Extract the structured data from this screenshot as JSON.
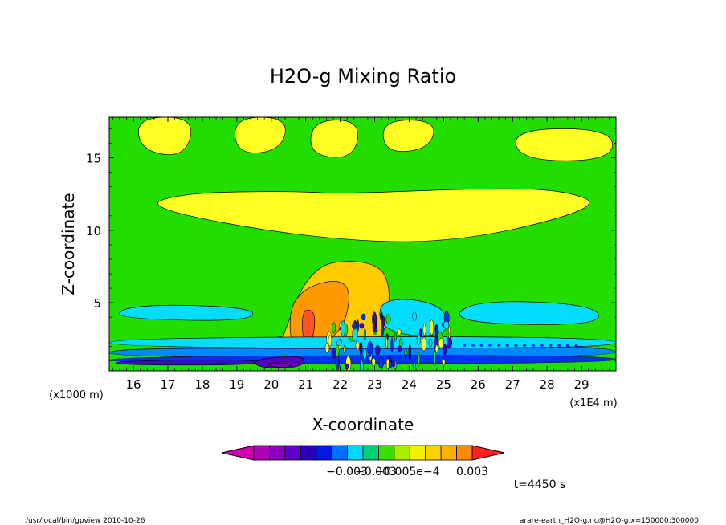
{
  "chart_data": {
    "type": "heatmap",
    "title": "H2O-g Mixing Ratio",
    "xlabel": "X-coordinate",
    "ylabel": "Z-coordinate",
    "x_unit_label": "(x1E4 m)",
    "y_unit_label": "(x1000 m)",
    "xlim": [
      15.3,
      30.0
    ],
    "ylim": [
      0.3,
      17.8
    ],
    "x_ticks": [
      "16",
      "17",
      "18",
      "19",
      "20",
      "21",
      "22",
      "23",
      "24",
      "25",
      "26",
      "27",
      "28",
      "29"
    ],
    "y_ticks": [
      "5",
      "10",
      "15"
    ],
    "colorbar": {
      "colors": [
        "#d000b0",
        "#b000b8",
        "#8a00c0",
        "#6000c8",
        "#2a00b8",
        "#0018e0",
        "#0070ff",
        "#00d8ff",
        "#00d078",
        "#36e000",
        "#a8f000",
        "#f0f000",
        "#ffd000",
        "#ffb000",
        "#ff8c00",
        "#ff2020"
      ],
      "tick_labels": [
        "−0.003",
        "−0.003",
        "−0.005e−4",
        "0.003"
      ]
    },
    "footer_time": "t=4450 s",
    "footer_left": "/usr/local/bin/gpview  2010-10-26",
    "footer_right": "arare-earth_H2O-g.nc@H2O-g,x=150000:300000",
    "colors": {
      "background_level": "#22dd00",
      "pale": "#ffff22",
      "moderate": "#ffcc00",
      "high": "#ff9900",
      "max": "#ff5522",
      "cyan": "#00ddff",
      "mid_blue": "#0088ff",
      "blue": "#0033ee",
      "indigo": "#3311bb",
      "violet": "#5500bb",
      "purple": "#7700bb"
    },
    "regions": [
      {
        "level": "pale",
        "x": [
          20.9,
          25.2,
          29.7,
          28.5,
          26.0,
          22.0,
          20.7,
          17.5,
          16.2
        ],
        "z": [
          9.5,
          9.0,
          11.6,
          12.8,
          12.9,
          12.5,
          12.7,
          12.6,
          11.6
        ]
      },
      {
        "level": "pale",
        "x": [
          16.1,
          17.8,
          17.5,
          16.2
        ],
        "z": [
          17.8,
          17.8,
          15.0,
          15.5
        ]
      },
      {
        "level": "pale",
        "x": [
          18.9,
          20.5,
          20.3,
          19.0
        ],
        "z": [
          17.8,
          17.8,
          15.5,
          15.2
        ]
      },
      {
        "level": "pale",
        "x": [
          21.2,
          22.6,
          22.4,
          21.1
        ],
        "z": [
          17.6,
          17.6,
          14.9,
          15.2
        ]
      },
      {
        "level": "pale",
        "x": [
          23.2,
          24.8,
          24.6,
          23.3
        ],
        "z": [
          17.6,
          17.6,
          15.6,
          15.3
        ]
      },
      {
        "level": "pale",
        "x": [
          27.0,
          29.9,
          29.9,
          27.2
        ],
        "z": [
          17.0,
          17.0,
          14.8,
          14.8
        ]
      },
      {
        "level": "pale",
        "x": [
          19.7,
          22.4,
          22.3,
          21.0,
          19.6
        ],
        "z": [
          2.5,
          3.5,
          1.6,
          1.3,
          1.5
        ]
      },
      {
        "level": "pale",
        "x": [
          17.0,
          18.8,
          18.6,
          17.1
        ],
        "z": [
          1.8,
          1.7,
          1.4,
          1.4
        ]
      },
      {
        "level": "pale",
        "x": [
          26.1,
          29.6,
          29.6,
          26.2
        ],
        "z": [
          2.4,
          2.3,
          1.9,
          1.9
        ]
      },
      {
        "level": "moderate",
        "x": [
          20.2,
          21.1,
          22.7,
          23.5,
          23.3,
          21.3,
          20.1
        ],
        "z": [
          1.7,
          7.6,
          8.0,
          6.8,
          1.9,
          1.4,
          1.6
        ]
      },
      {
        "level": "moderate",
        "x": [
          19.7,
          20.4,
          20.2,
          19.6
        ],
        "z": [
          2.0,
          2.1,
          1.6,
          1.7
        ]
      },
      {
        "level": "high",
        "x": [
          20.6,
          22.3,
          22.2,
          21.2,
          20.5
        ],
        "z": [
          5.8,
          6.9,
          3.4,
          1.6,
          2.0
        ]
      },
      {
        "level": "max",
        "x": [
          20.9,
          21.3,
          21.2,
          20.9
        ],
        "z": [
          4.6,
          4.4,
          2.2,
          2.4
        ]
      },
      {
        "level": "cyan",
        "x": [
          15.6,
          19.3,
          19.6,
          17.0,
          15.6
        ],
        "z": [
          3.9,
          3.7,
          4.6,
          4.9,
          4.6
        ]
      },
      {
        "level": "cyan",
        "x": [
          23.1,
          25.0,
          25.2,
          23.2
        ],
        "z": [
          5.4,
          5.0,
          2.6,
          2.9
        ]
      },
      {
        "level": "cyan",
        "x": [
          25.2,
          29.6,
          29.4,
          25.8
        ],
        "z": [
          3.6,
          3.4,
          4.9,
          5.2
        ]
      },
      {
        "level": "cyan",
        "x": [
          15.3,
          30.0,
          30.0,
          15.3
        ],
        "z": [
          2.6,
          2.7,
          1.8,
          1.9
        ]
      },
      {
        "level": "mid_blue",
        "x": [
          15.3,
          24.0,
          30.0,
          30.0,
          15.3
        ],
        "z": [
          1.9,
          1.8,
          2.0,
          1.2,
          1.2
        ]
      },
      {
        "level": "blue",
        "x": [
          15.3,
          30.0,
          30.0,
          15.3
        ],
        "z": [
          1.3,
          1.4,
          0.8,
          0.8
        ]
      },
      {
        "level": "indigo",
        "x": [
          15.5,
          19.7,
          19.6,
          15.5
        ],
        "z": [
          1.0,
          1.1,
          0.7,
          0.7
        ]
      },
      {
        "level": "violet",
        "x": [
          19.5,
          21.0,
          20.9,
          19.6
        ],
        "z": [
          1.1,
          1.4,
          0.5,
          0.5
        ]
      },
      {
        "level": "purple",
        "x": [
          19.9,
          20.6,
          20.5,
          19.9
        ],
        "z": [
          0.9,
          0.8,
          0.5,
          0.6
        ]
      }
    ]
  }
}
